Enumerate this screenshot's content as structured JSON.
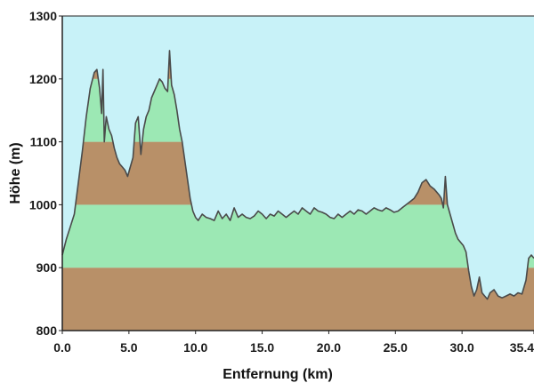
{
  "chart_data": {
    "type": "area",
    "title": "",
    "xlabel": "Entfernung  (km)",
    "ylabel": "Höhe (m)",
    "xlim": [
      0,
      35.4
    ],
    "ylim": [
      800,
      1300
    ],
    "x_ticks": [
      "0.0",
      "5.0",
      "10.0",
      "15.0",
      "20.0",
      "25.0",
      "30.0",
      "35.4"
    ],
    "y_ticks": [
      "800",
      "900",
      "1000",
      "1100",
      "1200",
      "1300"
    ],
    "grid": false,
    "legend": "none",
    "colors": {
      "sky": "#c8f2f8",
      "band_brown": "#b89068",
      "band_green": "#9ce8b4",
      "profile_line": "#4a4a4a",
      "axis": "#222222"
    },
    "elevation_bands": [
      {
        "from": 800,
        "to": 900,
        "color": "band_brown"
      },
      {
        "from": 900,
        "to": 1000,
        "color": "band_green"
      },
      {
        "from": 1000,
        "to": 1100,
        "color": "band_brown"
      },
      {
        "from": 1100,
        "to": 1200,
        "color": "band_green"
      },
      {
        "from": 1200,
        "to": 1300,
        "color": "band_brown"
      }
    ],
    "series": [
      {
        "x": [
          0,
          0.3,
          0.6,
          0.9,
          1.2,
          1.5,
          1.8,
          2.1,
          2.4,
          2.6,
          2.8,
          2.95,
          3.05,
          3.15,
          3.3,
          3.5,
          3.7,
          3.9,
          4.1,
          4.3,
          4.5,
          4.7,
          4.9,
          5.1,
          5.3,
          5.5,
          5.7,
          5.9,
          6.1,
          6.3,
          6.5,
          6.7,
          6.9,
          7.1,
          7.3,
          7.5,
          7.7,
          7.9,
          8.05,
          8.2,
          8.4,
          8.6,
          8.8,
          9.0,
          9.2,
          9.4,
          9.6,
          9.8,
          10.0,
          10.2,
          10.5,
          10.8,
          11.1,
          11.4,
          11.7,
          12.0,
          12.3,
          12.6,
          12.9,
          13.2,
          13.5,
          13.8,
          14.1,
          14.4,
          14.7,
          15.0,
          15.3,
          15.6,
          15.9,
          16.2,
          16.5,
          16.8,
          17.1,
          17.4,
          17.7,
          18.0,
          18.3,
          18.6,
          18.9,
          19.2,
          19.5,
          19.8,
          20.1,
          20.4,
          20.7,
          21.0,
          21.3,
          21.6,
          21.9,
          22.2,
          22.5,
          22.8,
          23.1,
          23.4,
          23.7,
          24.0,
          24.3,
          24.6,
          24.9,
          25.2,
          25.5,
          25.8,
          26.1,
          26.4,
          26.7,
          27.0,
          27.3,
          27.6,
          27.9,
          28.1,
          28.3,
          28.45,
          28.6,
          28.75,
          28.9,
          29.1,
          29.3,
          29.5,
          29.7,
          29.9,
          30.1,
          30.3,
          30.5,
          30.7,
          30.9,
          31.1,
          31.3,
          31.5,
          31.7,
          31.9,
          32.1,
          32.4,
          32.7,
          33.0,
          33.3,
          33.6,
          33.9,
          34.2,
          34.5,
          34.8,
          35.0,
          35.2,
          35.4
        ],
        "y": [
          920,
          945,
          965,
          985,
          1035,
          1085,
          1140,
          1185,
          1210,
          1215,
          1185,
          1145,
          1215,
          1100,
          1140,
          1120,
          1110,
          1090,
          1075,
          1065,
          1060,
          1055,
          1045,
          1060,
          1075,
          1130,
          1140,
          1080,
          1120,
          1140,
          1150,
          1170,
          1180,
          1190,
          1200,
          1195,
          1185,
          1180,
          1245,
          1190,
          1175,
          1150,
          1120,
          1100,
          1070,
          1040,
          1010,
          990,
          980,
          975,
          985,
          980,
          978,
          975,
          990,
          978,
          985,
          975,
          995,
          980,
          985,
          980,
          978,
          982,
          990,
          985,
          978,
          985,
          982,
          990,
          985,
          980,
          985,
          990,
          985,
          995,
          990,
          985,
          995,
          990,
          988,
          985,
          980,
          978,
          985,
          980,
          985,
          990,
          985,
          992,
          990,
          985,
          990,
          995,
          992,
          990,
          995,
          992,
          988,
          990,
          995,
          1000,
          1005,
          1010,
          1020,
          1035,
          1040,
          1030,
          1025,
          1020,
          1015,
          1010,
          995,
          1045,
          1000,
          985,
          970,
          955,
          945,
          940,
          935,
          925,
          895,
          870,
          855,
          865,
          885,
          860,
          855,
          850,
          860,
          865,
          855,
          852,
          855,
          858,
          855,
          860,
          858,
          880,
          915,
          920,
          915
        ]
      }
    ]
  }
}
